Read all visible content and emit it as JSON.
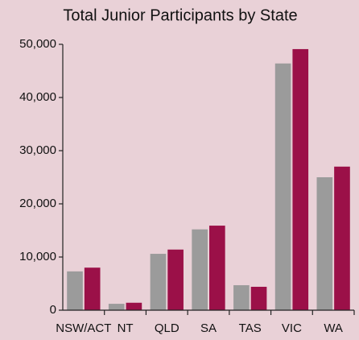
{
  "chart_data": {
    "type": "bar",
    "title": "Total Junior Participants by State",
    "categories": [
      "NSW/ACT",
      "NT",
      "QLD",
      "SA",
      "TAS",
      "VIC",
      "WA"
    ],
    "series": [
      {
        "color": "#9b9b9b",
        "values": [
          7300,
          1200,
          10600,
          15200,
          4700,
          46400,
          25000
        ]
      },
      {
        "color": "#9b1048",
        "values": [
          8000,
          1400,
          11400,
          15900,
          4400,
          49100,
          27000
        ]
      }
    ],
    "ylim": [
      0,
      50000
    ],
    "yticks": [
      0,
      {
        "value": 10000,
        "label": "10,000"
      },
      {
        "value": 20000,
        "label": "20,000"
      },
      {
        "value": 30000,
        "label": "30,000"
      },
      {
        "value": 40000,
        "label": "40,000"
      },
      {
        "value": 50000,
        "label": "50,000"
      }
    ],
    "grid": false
  }
}
